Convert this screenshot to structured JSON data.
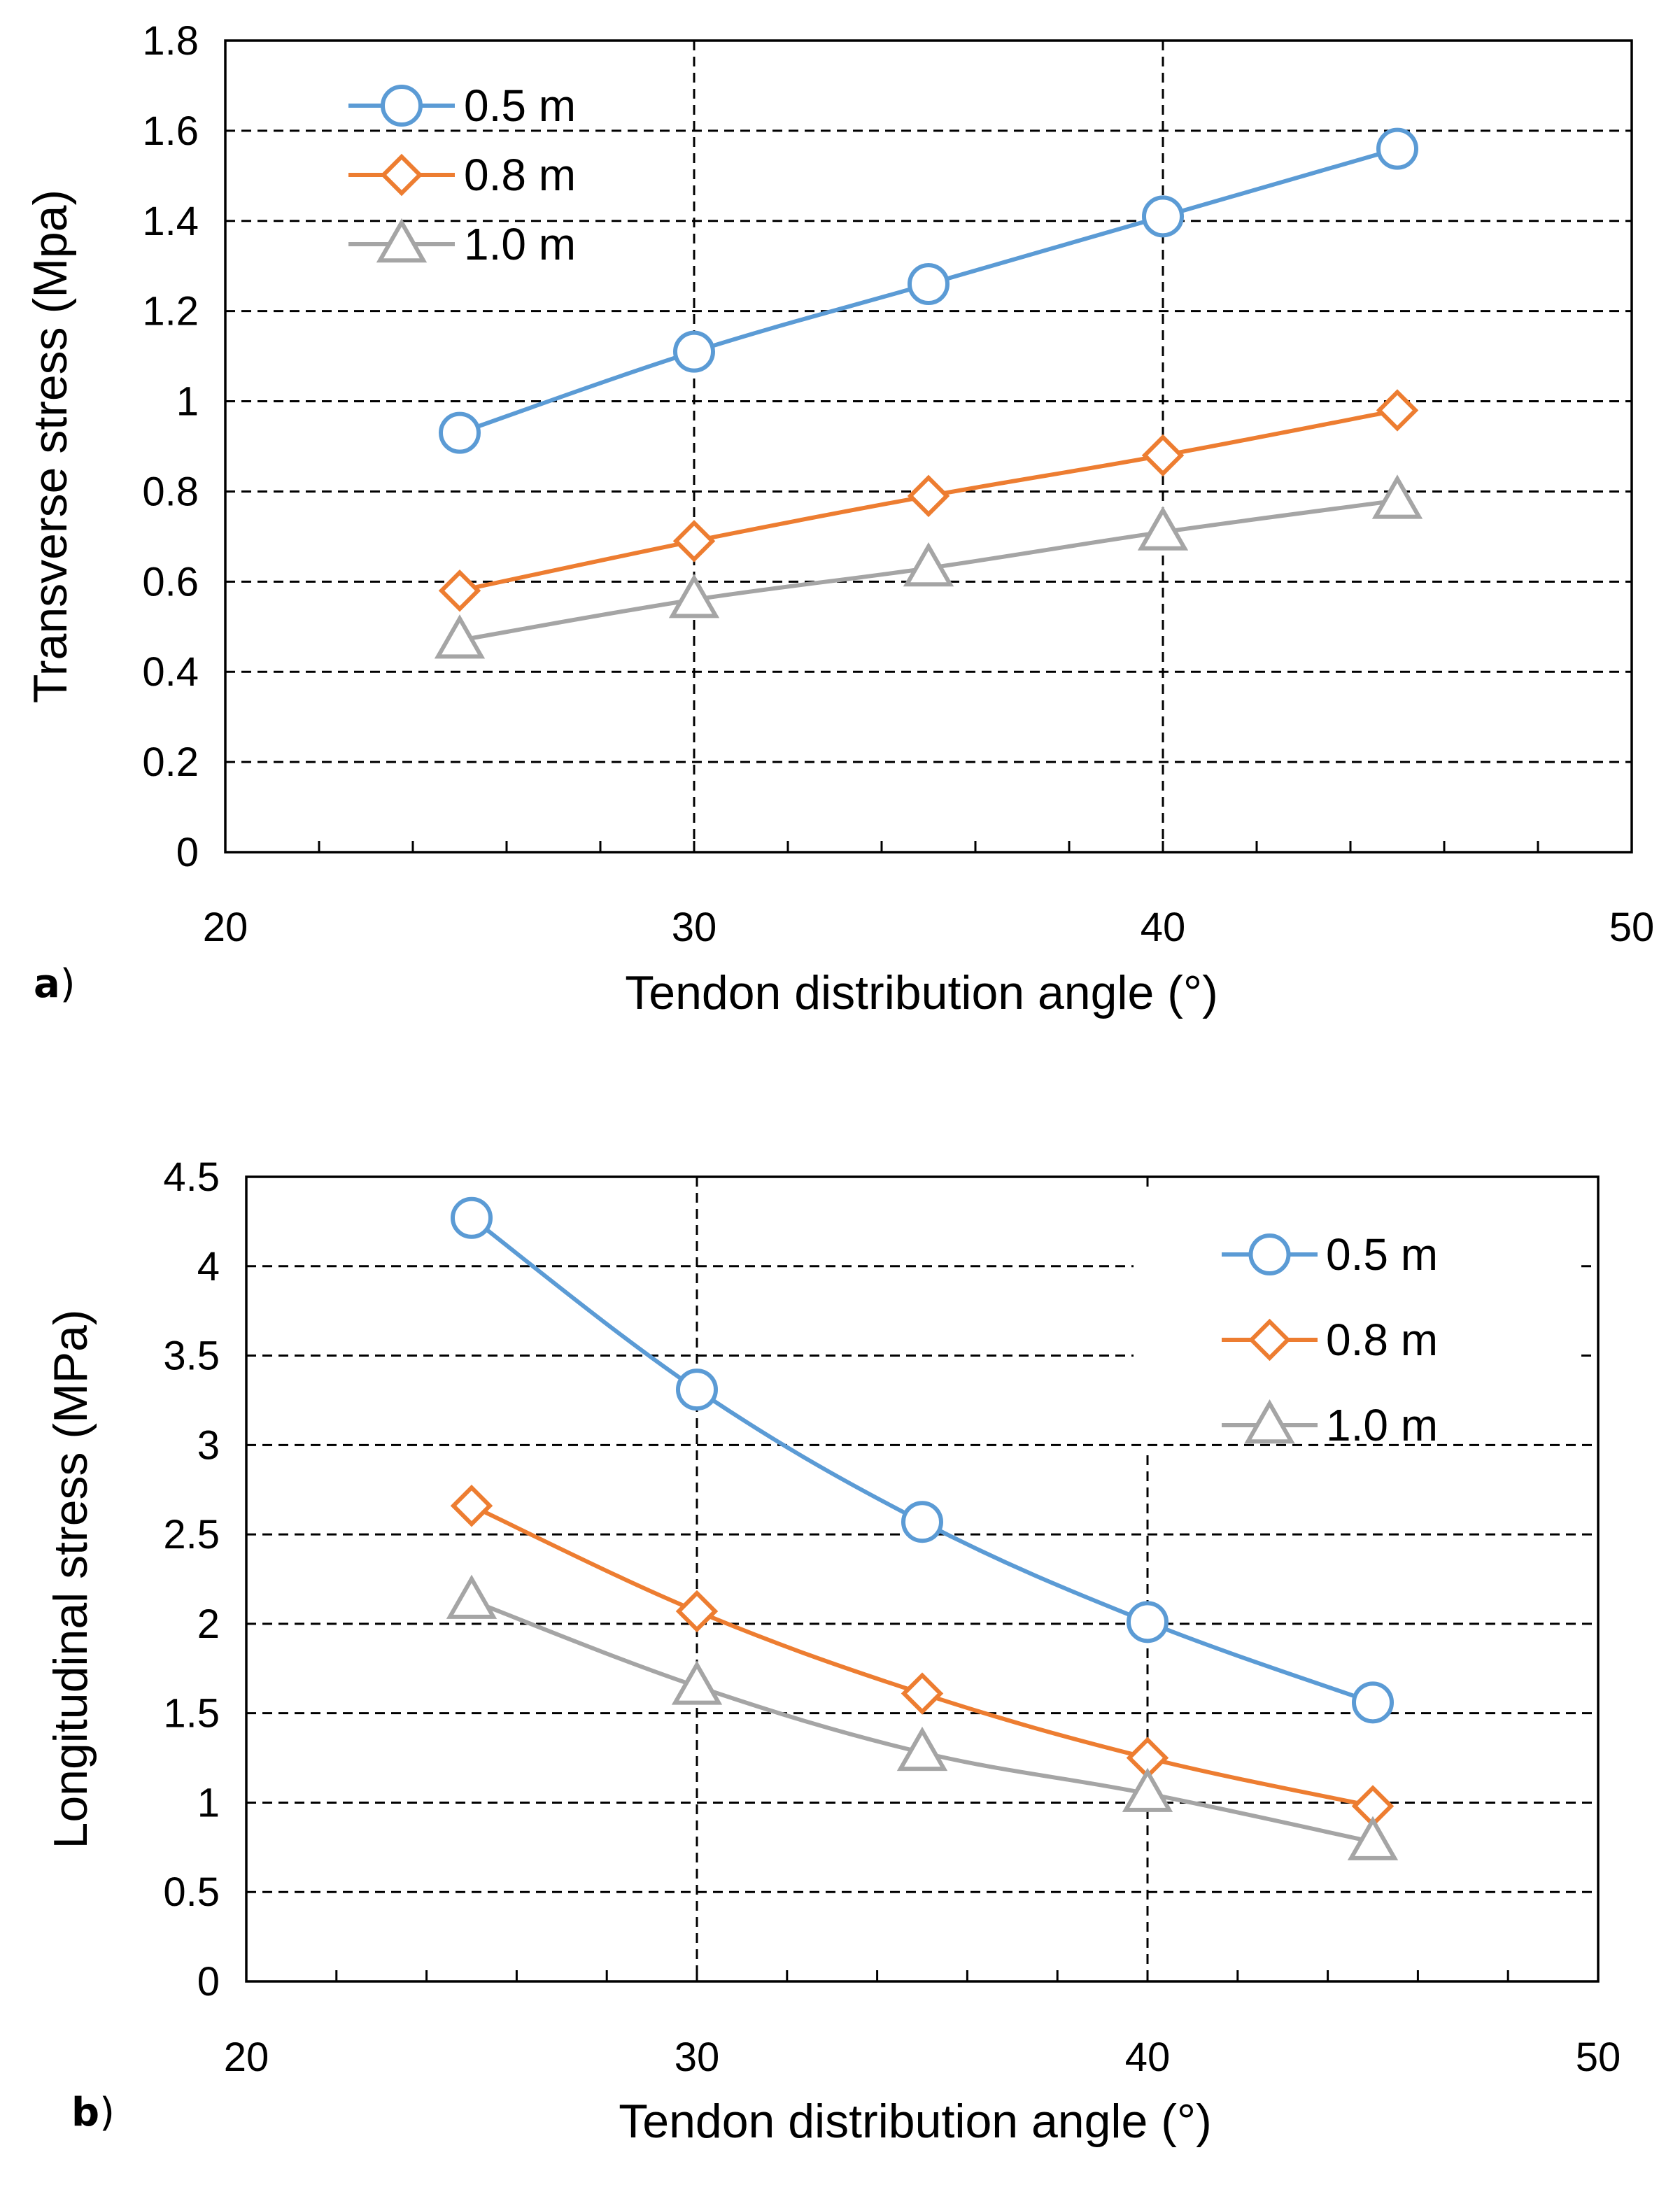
{
  "chart_data": [
    {
      "type": "line",
      "panel_label": "a",
      "title": "",
      "xlabel": "Tendon distribution angle (°)",
      "ylabel": "Transverse stress (Mpa)",
      "xlim": [
        20,
        50
      ],
      "ylim": [
        0,
        1.8
      ],
      "xticks": [
        "20",
        "30",
        "40",
        "50"
      ],
      "yticks": [
        "0",
        "0.2",
        "0.4",
        "0.6",
        "0.8",
        "1",
        "1.2",
        "1.4",
        "1.6",
        "1.8"
      ],
      "grid": "dashed",
      "legend_position": "top-left",
      "x": [
        25,
        30,
        35,
        40,
        45
      ],
      "series": [
        {
          "name": "0.5 m",
          "marker": "circle",
          "color": "#5B9BD5",
          "values": [
            0.93,
            1.11,
            1.26,
            1.41,
            1.56
          ]
        },
        {
          "name": "0.8 m",
          "marker": "diamond",
          "color": "#ED7D31",
          "values": [
            0.58,
            0.69,
            0.79,
            0.88,
            0.98
          ]
        },
        {
          "name": "1.0 m",
          "marker": "triangle",
          "color": "#A5A5A5",
          "values": [
            0.47,
            0.56,
            0.63,
            0.71,
            0.78
          ]
        }
      ]
    },
    {
      "type": "line",
      "panel_label": "b",
      "title": "",
      "xlabel": "Tendon distribution angle (°)",
      "ylabel": "Longitudinal stress (MPa)",
      "xlim": [
        20,
        50
      ],
      "ylim": [
        0,
        4.5
      ],
      "xticks": [
        "20",
        "30",
        "40",
        "50"
      ],
      "yticks": [
        "0",
        "0.5",
        "1",
        "1.5",
        "2",
        "2.5",
        "3",
        "3.5",
        "4",
        "4.5"
      ],
      "grid": "dashed",
      "legend_position": "top-right",
      "x": [
        25,
        30,
        35,
        40,
        45
      ],
      "series": [
        {
          "name": "0.5 m",
          "marker": "circle",
          "color": "#5B9BD5",
          "values": [
            4.27,
            3.31,
            2.57,
            2.01,
            1.56
          ]
        },
        {
          "name": "0.8 m",
          "marker": "diamond",
          "color": "#ED7D31",
          "values": [
            2.66,
            2.07,
            1.61,
            1.25,
            0.98
          ]
        },
        {
          "name": "1.0 m",
          "marker": "triangle",
          "color": "#A5A5A5",
          "values": [
            2.13,
            1.65,
            1.28,
            1.05,
            0.78
          ]
        }
      ]
    }
  ]
}
